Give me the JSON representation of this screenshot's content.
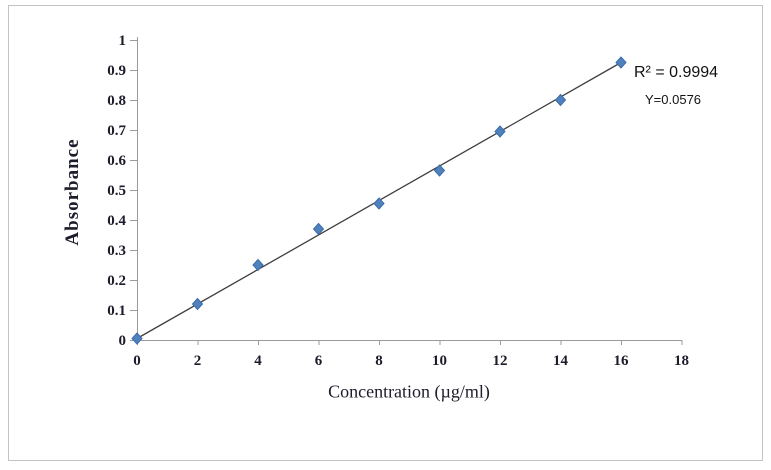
{
  "chart_data": {
    "type": "scatter",
    "xlabel": "Concentration (µg/ml)",
    "ylabel": "Absorbance",
    "x": [
      0,
      2,
      4,
      6,
      8,
      10,
      12,
      14,
      16
    ],
    "series": [
      {
        "name": "Absorbance",
        "values": [
          0.005,
          0.12,
          0.25,
          0.37,
          0.455,
          0.565,
          0.695,
          0.8,
          0.925
        ]
      }
    ],
    "trendline": {
      "type": "linear",
      "x1": 0,
      "y1": 0.005,
      "x2": 16,
      "y2": 0.925
    },
    "annotations": [
      {
        "id": "r-squared",
        "text": "R² = 0.9994"
      },
      {
        "id": "equation",
        "text": "Y=0.0576"
      }
    ],
    "xlim": [
      0,
      18
    ],
    "ylim": [
      0,
      1
    ],
    "x_ticks": [
      {
        "value": 0,
        "label": "0"
      },
      {
        "value": 2,
        "label": "2"
      },
      {
        "value": 4,
        "label": "4"
      },
      {
        "value": 6,
        "label": "6"
      },
      {
        "value": 8,
        "label": "8"
      },
      {
        "value": 10,
        "label": "10"
      },
      {
        "value": 12,
        "label": "12"
      },
      {
        "value": 14,
        "label": "14"
      },
      {
        "value": 16,
        "label": "16"
      },
      {
        "value": 18,
        "label": "18"
      }
    ],
    "y_ticks": [
      {
        "value": 0,
        "label": "0"
      },
      {
        "value": 0.1,
        "label": "0.1"
      },
      {
        "value": 0.2,
        "label": "0.2"
      },
      {
        "value": 0.3,
        "label": "0.3"
      },
      {
        "value": 0.4,
        "label": "0.4"
      },
      {
        "value": 0.5,
        "label": "0.5"
      },
      {
        "value": 0.6,
        "label": "0.6"
      },
      {
        "value": 0.7,
        "label": "0.7"
      },
      {
        "value": 0.8,
        "label": "0.8"
      },
      {
        "value": 0.9,
        "label": "0.9"
      },
      {
        "value": 1,
        "label": "1"
      }
    ],
    "grid": false,
    "legend": false,
    "marker": "diamond",
    "colors": {
      "marker": "#4f81bd",
      "marker_border": "#3a6ca8",
      "trendline": "#3f3f3f",
      "axis": "#9b9b9b",
      "tick_text": "#1c1c2b",
      "figure_border": "#c3c3c3"
    }
  }
}
